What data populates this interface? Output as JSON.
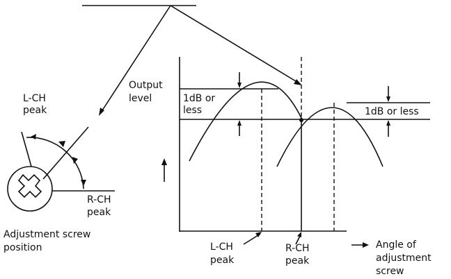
{
  "screw": {
    "l_ch_peak": [
      "L-CH",
      "peak"
    ],
    "r_ch_peak": [
      "R-CH",
      "peak"
    ],
    "caption": [
      "Adjustment screw",
      "position"
    ]
  },
  "graph": {
    "y_label": [
      "Output",
      "level"
    ],
    "left_tolerance": [
      "1dB or",
      "less"
    ],
    "right_tolerance": "1dB or less",
    "l_ch_peak": [
      "L-CH",
      "peak"
    ],
    "r_ch_peak": [
      "R-CH",
      "peak"
    ],
    "x_label": [
      "Angle of",
      "adjustment",
      "screw"
    ]
  }
}
